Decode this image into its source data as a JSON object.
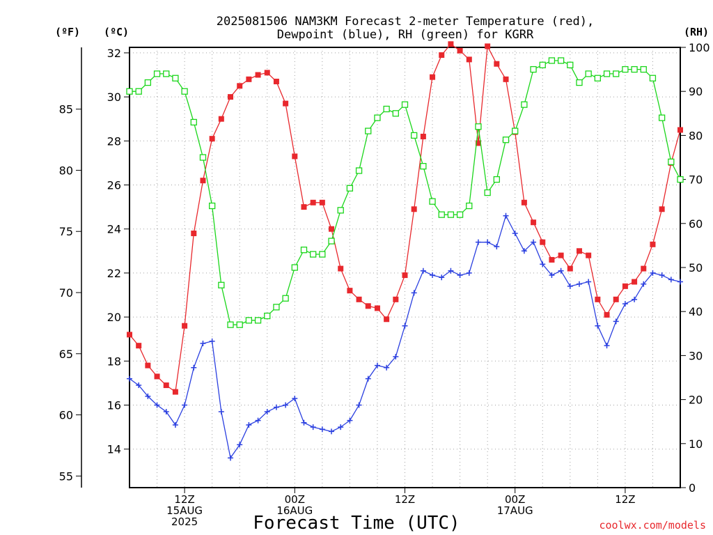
{
  "title_line1": "2025081506 NAM3KM Forecast 2-meter Temperature (red),",
  "title_line2": "Dewpoint (blue), RH (green) for KGRR",
  "unit_left_f": "(ºF)",
  "unit_left_c": "(ºC)",
  "unit_right": "(RH)",
  "xlabel": "Forecast Time (UTC)",
  "credit": "coolwx.com/models",
  "colors": {
    "temperature": "#e8282d",
    "dewpoint": "#2a3fe0",
    "rh": "#1ad61a",
    "grid": "#a0a0a0",
    "credit": "#e8282d"
  },
  "chart_data": {
    "type": "line",
    "x": [
      6,
      7,
      8,
      9,
      10,
      11,
      12,
      13,
      14,
      15,
      16,
      17,
      18,
      19,
      20,
      21,
      22,
      23,
      24,
      25,
      26,
      27,
      28,
      29,
      30,
      31,
      32,
      33,
      34,
      35,
      36,
      37,
      38,
      39,
      40,
      41,
      42,
      43,
      44,
      45,
      46,
      47,
      48,
      49,
      50,
      51,
      52,
      53,
      54,
      55,
      56,
      57,
      58,
      59,
      60,
      61,
      62,
      63,
      64,
      65,
      66
    ],
    "x_unit": "hours since 2025-08-15 00Z",
    "xlim": [
      6,
      66
    ],
    "x_ticks": [
      {
        "x": 12,
        "lines": [
          "12Z",
          "15AUG",
          "2025"
        ]
      },
      {
        "x": 24,
        "lines": [
          "00Z",
          "16AUG"
        ]
      },
      {
        "x": 36,
        "lines": [
          "12Z"
        ]
      },
      {
        "x": 48,
        "lines": [
          "00Z",
          "17AUG"
        ]
      },
      {
        "x": 60,
        "lines": [
          "12Z"
        ]
      }
    ],
    "y_celsius": {
      "lim": [
        12.25,
        32.25
      ],
      "ticks": [
        14,
        16,
        18,
        20,
        22,
        24,
        26,
        28,
        30,
        32
      ]
    },
    "y_fahrenheit_ticks": [
      55,
      60,
      65,
      70,
      75,
      80,
      85
    ],
    "y_rh": {
      "lim": [
        0,
        100
      ],
      "ticks": [
        0,
        10,
        20,
        30,
        40,
        50,
        60,
        70,
        80,
        90,
        100
      ]
    },
    "grid": true,
    "series": [
      {
        "name": "Temperature (red)",
        "axis": "celsius",
        "marker": "filled-square",
        "values": [
          19.2,
          18.7,
          17.8,
          17.3,
          16.9,
          16.6,
          19.6,
          23.8,
          26.2,
          28.1,
          29.0,
          30.0,
          30.5,
          30.8,
          31.0,
          31.1,
          30.7,
          29.7,
          27.3,
          25.0,
          25.2,
          25.2,
          24.0,
          22.2,
          21.2,
          20.8,
          20.5,
          20.4,
          19.9,
          20.8,
          21.9,
          24.9,
          28.2,
          30.9,
          31.9,
          32.4,
          32.1,
          31.7,
          27.9,
          32.3,
          31.5,
          30.8,
          28.4,
          25.2,
          24.3,
          23.4,
          22.6,
          22.8,
          22.2,
          23.0,
          22.8,
          20.8,
          20.1,
          20.8,
          21.4,
          21.6,
          22.2,
          23.3,
          24.9,
          27.0,
          28.5
        ]
      },
      {
        "name": "Dewpoint (blue)",
        "axis": "celsius",
        "marker": "plus",
        "values": [
          17.2,
          16.9,
          16.4,
          16.0,
          15.7,
          15.1,
          16.0,
          17.7,
          18.8,
          18.9,
          15.7,
          13.6,
          14.2,
          15.1,
          15.3,
          15.7,
          15.9,
          16.0,
          16.3,
          15.2,
          15.0,
          14.9,
          14.8,
          15.0,
          15.3,
          16.0,
          17.2,
          17.8,
          17.7,
          18.2,
          19.6,
          21.1,
          22.1,
          21.9,
          21.8,
          22.1,
          21.9,
          22.0,
          23.4,
          23.4,
          23.2,
          24.6,
          23.8,
          23.0,
          23.4,
          22.4,
          21.9,
          22.1,
          21.4,
          21.5,
          21.6,
          19.6,
          18.7,
          19.8,
          20.6,
          20.8,
          21.5,
          22.0,
          21.9,
          21.7,
          21.6
        ]
      },
      {
        "name": "RH (green)",
        "axis": "rh",
        "marker": "open-square",
        "values": [
          90,
          90,
          92,
          94,
          94,
          93,
          90,
          83,
          75,
          64,
          46,
          37,
          37,
          38,
          38,
          39,
          41,
          43,
          50,
          54,
          53,
          53,
          56,
          63,
          68,
          72,
          81,
          84,
          86,
          85,
          87,
          80,
          73,
          65,
          62,
          62,
          62,
          64,
          82,
          67,
          70,
          79,
          81,
          87,
          95,
          96,
          97,
          97,
          96,
          92,
          94,
          93,
          94,
          94,
          95,
          95,
          95,
          93,
          84,
          74,
          70
        ]
      }
    ]
  }
}
